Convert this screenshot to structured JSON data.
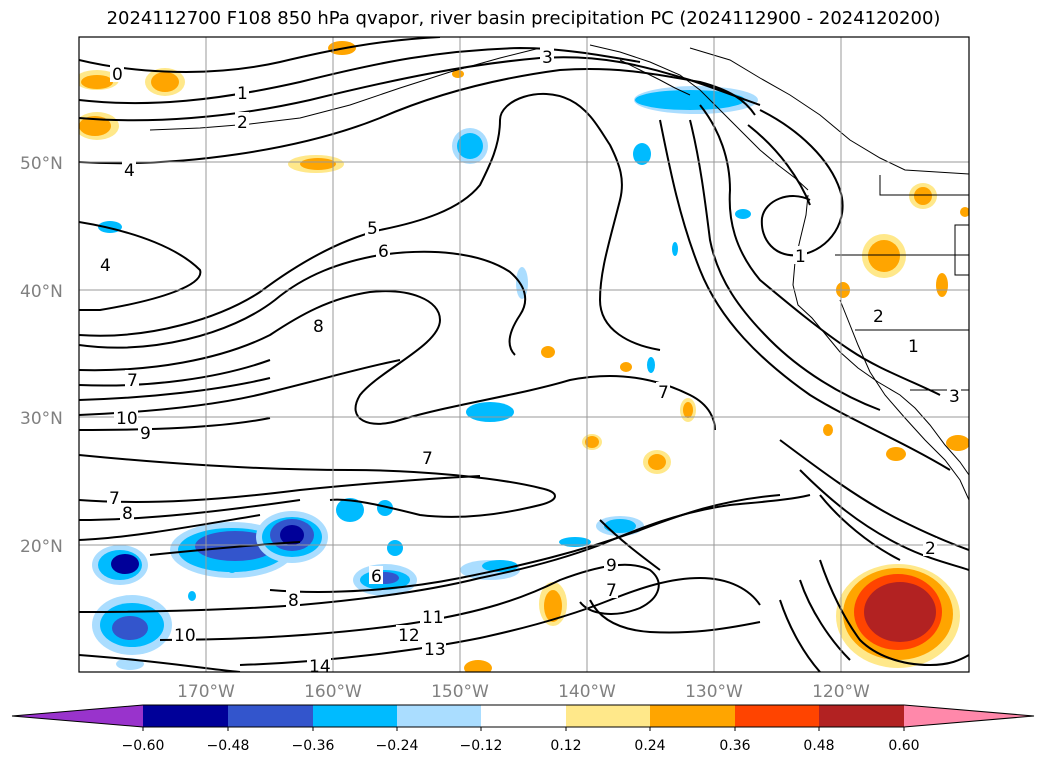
{
  "title": "2024112700 F108 850 hPa qvapor, river basin precipitation PC (2024112900 - 2024120200)",
  "map": {
    "lat_labels": [
      "50°N",
      "40°N",
      "30°N",
      "20°N"
    ],
    "lon_labels": [
      "170°W",
      "160°W",
      "150°W",
      "140°W",
      "130°W",
      "120°W"
    ],
    "contour_labels": [
      "0",
      "1",
      "2",
      "3",
      "4",
      "4",
      "5",
      "6",
      "7",
      "7",
      "7",
      "7",
      "8",
      "8",
      "8",
      "9",
      "9",
      "10",
      "10",
      "11",
      "12",
      "13",
      "14",
      "2",
      "1",
      "2",
      "3",
      "1",
      "6",
      "7"
    ]
  },
  "colorbar": {
    "ticks": [
      "−0.60",
      "−0.48",
      "−0.36",
      "−0.24",
      "−0.12",
      "0.12",
      "0.24",
      "0.36",
      "0.48",
      "0.60"
    ],
    "colors": [
      "#9933cc",
      "#000099",
      "#3355cc",
      "#00bbff",
      "#aaddff",
      "#ffffff",
      "#ffe88a",
      "#ffa500",
      "#ff4400",
      "#b22222",
      "#ff88aa"
    ]
  }
}
